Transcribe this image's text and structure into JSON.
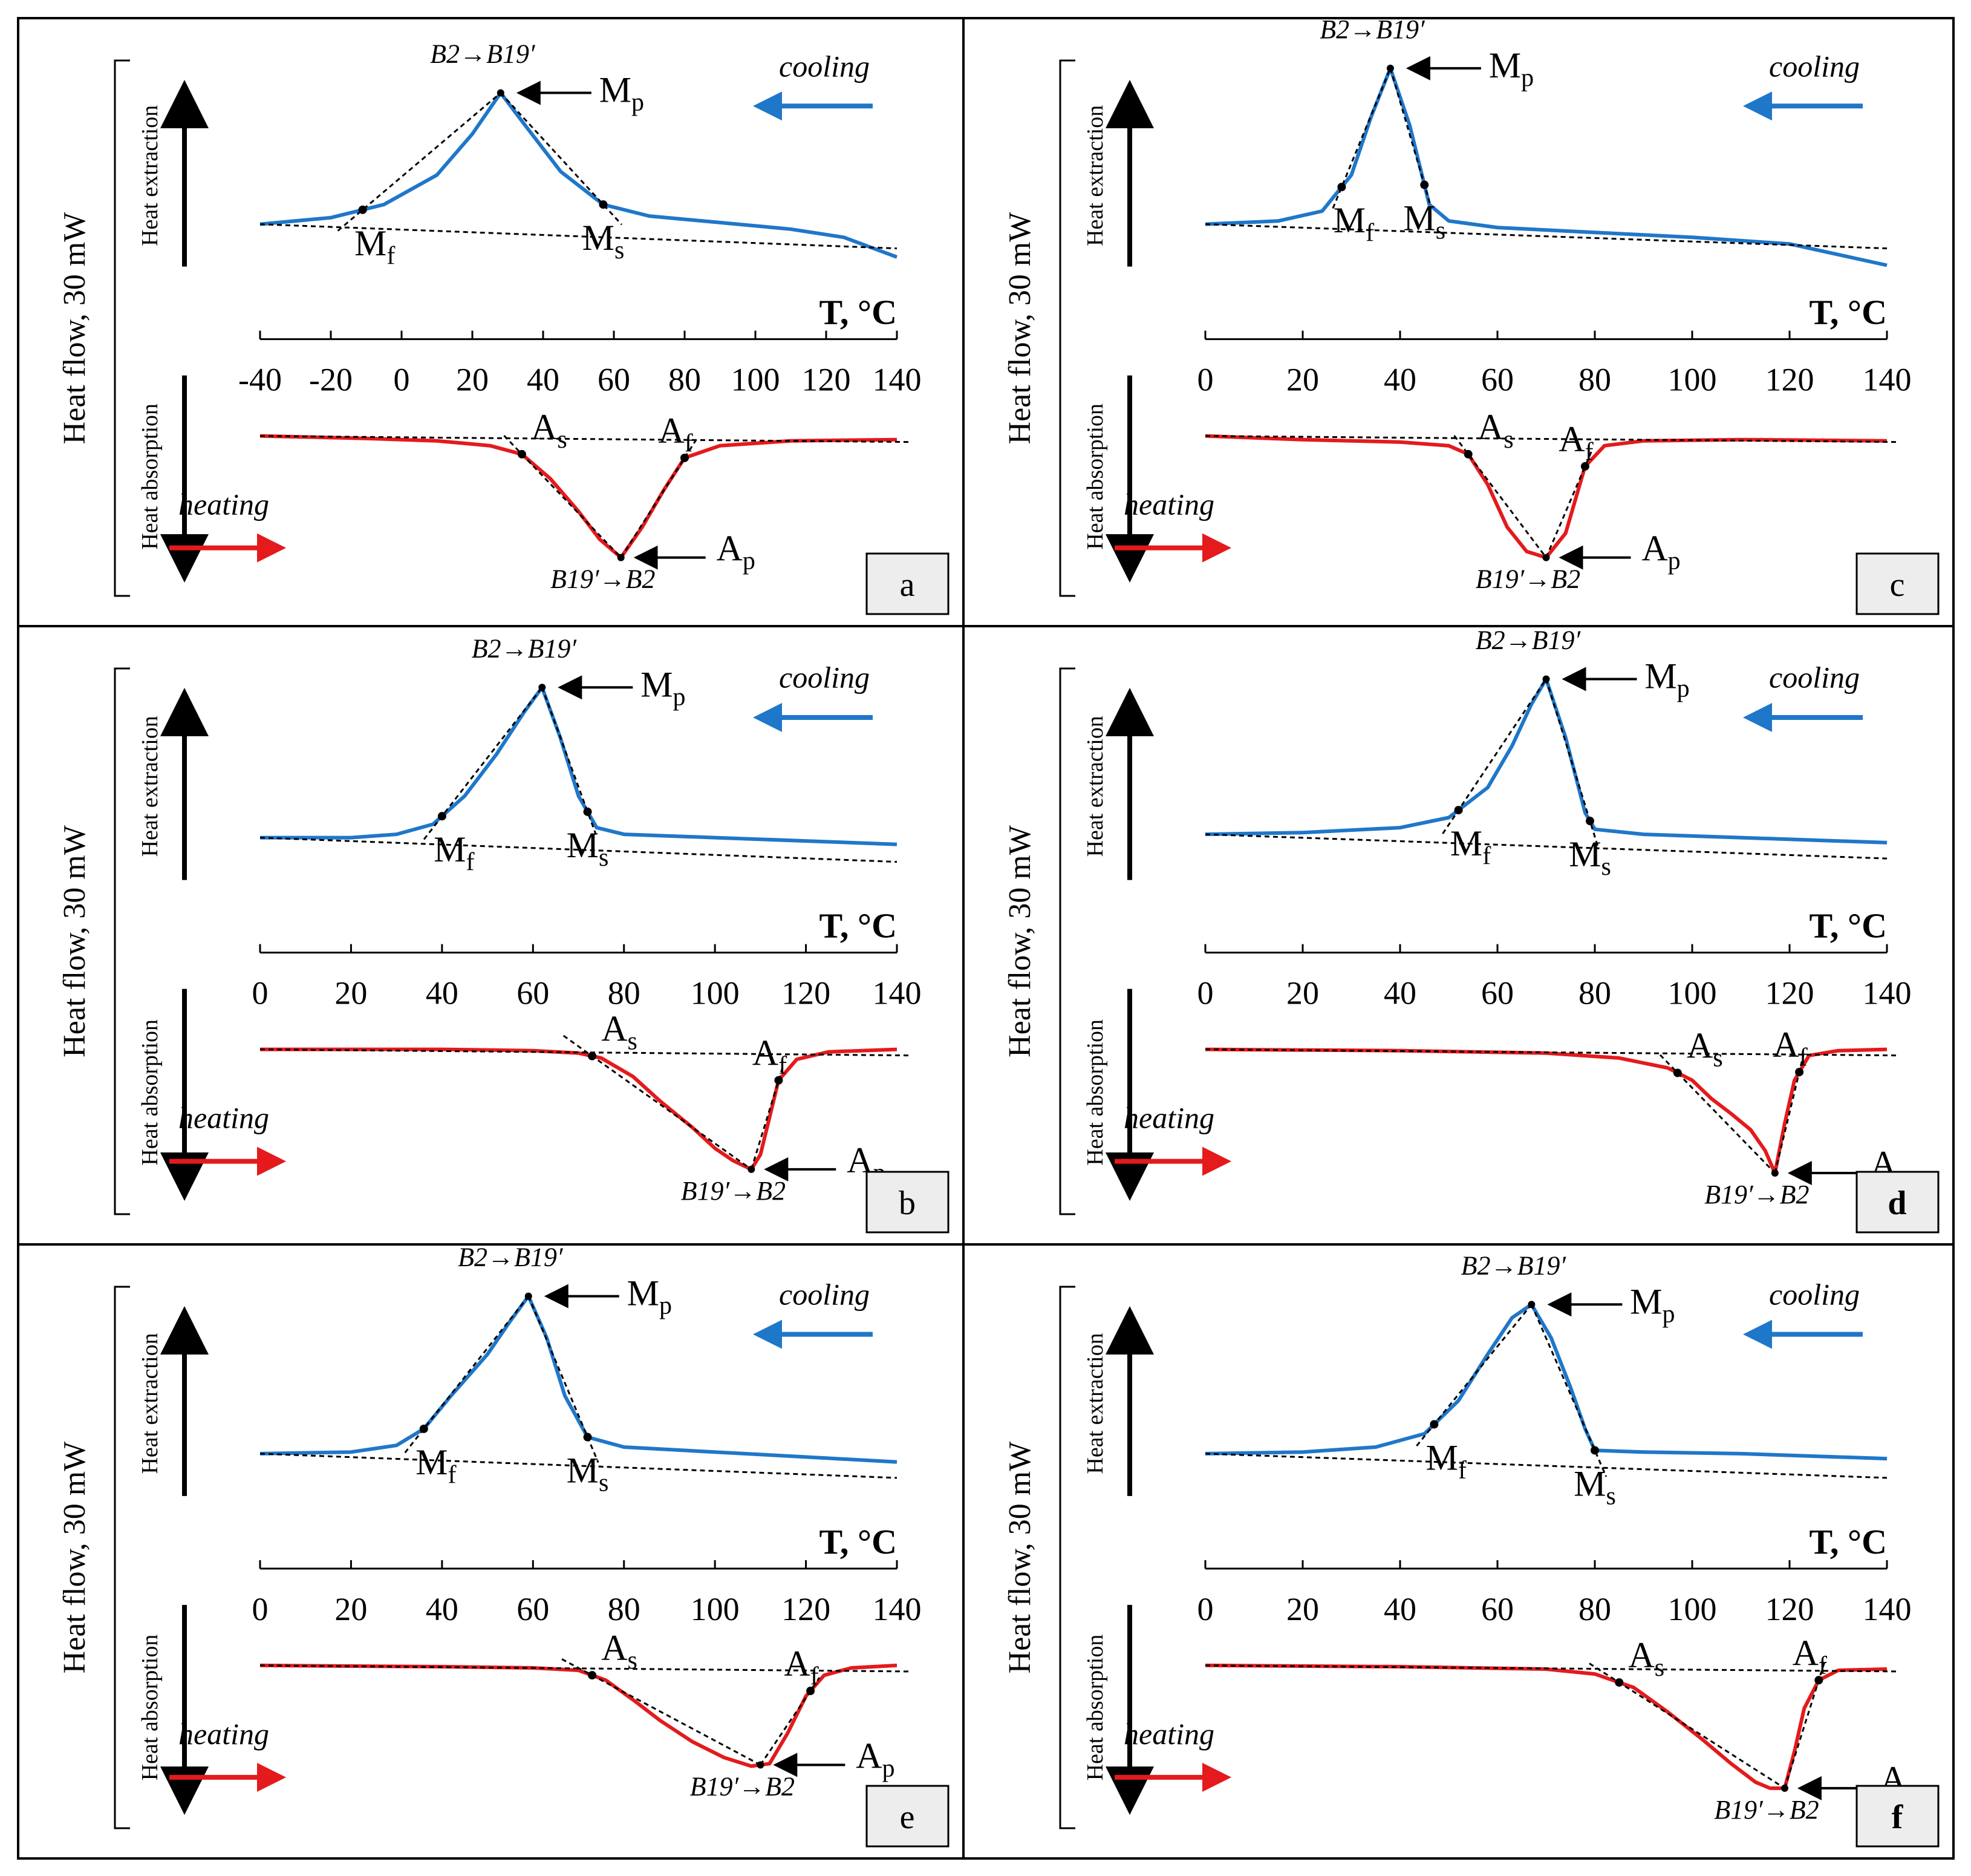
{
  "figure": {
    "y_axis_label": "Heat flow, 30 mW",
    "heat_extraction_label": "Heat extraction",
    "heat_absorption_label": "Heat absorption",
    "x_axis_label": "T, °C",
    "cooling_label": "cooling",
    "heating_label": "heating",
    "forward_transformation": "B2→B19′",
    "reverse_transformation": "B19′→B2",
    "point_labels": {
      "Mp": {
        "main": "M",
        "sub": "p"
      },
      "Mf": {
        "main": "M",
        "sub": "f"
      },
      "Ms": {
        "main": "M",
        "sub": "s"
      },
      "As": {
        "main": "A",
        "sub": "s"
      },
      "Af": {
        "main": "A",
        "sub": "f"
      },
      "Ap": {
        "main": "A",
        "sub": "p"
      }
    },
    "colors": {
      "cooling": "#1f77c9",
      "heating": "#e41a1c",
      "tangent": "#000000",
      "letter_box": "#ededed"
    }
  },
  "chart_data": [
    {
      "panel": "a",
      "type": "line",
      "xlim": [
        -40,
        140
      ],
      "x_ticks": [
        "-40",
        "-20",
        "0",
        "20",
        "40",
        "60",
        "80",
        "100",
        "120",
        "140"
      ],
      "cooling": {
        "Mf": -11,
        "Mp": 28,
        "Ms": 57,
        "x": [
          -40,
          -20,
          -5,
          10,
          20,
          28,
          35,
          45,
          57,
          70,
          90,
          110,
          125,
          140
        ],
        "y": [
          0.0,
          0.04,
          0.12,
          0.3,
          0.55,
          0.8,
          0.6,
          0.32,
          0.12,
          0.05,
          0.01,
          -0.03,
          -0.08,
          -0.2
        ]
      },
      "heating": {
        "As": 34,
        "Ap": 62,
        "Af": 80,
        "x": [
          -40,
          -10,
          10,
          25,
          34,
          42,
          50,
          56,
          62,
          68,
          74,
          80,
          90,
          110,
          140
        ],
        "y": [
          0.0,
          -0.02,
          -0.04,
          -0.08,
          -0.15,
          -0.35,
          -0.62,
          -0.85,
          -1.0,
          -0.75,
          -0.45,
          -0.18,
          -0.08,
          -0.04,
          -0.03
        ]
      }
    },
    {
      "panel": "b",
      "type": "line",
      "xlim": [
        0,
        140
      ],
      "x_ticks": [
        "0",
        "20",
        "40",
        "60",
        "80",
        "100",
        "120",
        "140"
      ],
      "cooling": {
        "Mf": 40,
        "Mp": 62,
        "Ms": 72,
        "x": [
          0,
          20,
          30,
          38,
          45,
          52,
          58,
          62,
          66,
          70,
          74,
          80,
          100,
          120,
          140
        ],
        "y": [
          0.0,
          0.0,
          0.02,
          0.08,
          0.25,
          0.5,
          0.75,
          0.9,
          0.6,
          0.25,
          0.06,
          0.02,
          0.0,
          -0.02,
          -0.04
        ]
      },
      "heating": {
        "As": 73,
        "Ap": 108,
        "Af": 114,
        "x": [
          0,
          40,
          60,
          70,
          75,
          82,
          88,
          95,
          100,
          104,
          108,
          110,
          112,
          114,
          118,
          125,
          140
        ],
        "y": [
          0.0,
          0.0,
          -0.01,
          -0.03,
          -0.07,
          -0.22,
          -0.42,
          -0.63,
          -0.8,
          -0.9,
          -0.97,
          -0.85,
          -0.55,
          -0.25,
          -0.08,
          -0.02,
          0.0
        ]
      }
    },
    {
      "panel": "c",
      "type": "line",
      "xlim": [
        0,
        140
      ],
      "x_ticks": [
        "0",
        "20",
        "40",
        "60",
        "80",
        "100",
        "120",
        "140"
      ],
      "cooling": {
        "Mf": 28,
        "Mp": 38,
        "Ms": 45,
        "x": [
          0,
          15,
          24,
          30,
          34,
          38,
          42,
          46,
          50,
          60,
          80,
          100,
          120,
          140
        ],
        "y": [
          0.0,
          0.02,
          0.08,
          0.3,
          0.65,
          0.95,
          0.6,
          0.12,
          0.02,
          -0.02,
          -0.05,
          -0.08,
          -0.12,
          -0.25
        ]
      },
      "heating": {
        "As": 54,
        "Ap": 70,
        "Af": 78,
        "x": [
          0,
          20,
          40,
          50,
          54,
          58,
          62,
          66,
          70,
          74,
          78,
          82,
          90,
          110,
          140
        ],
        "y": [
          0.0,
          -0.03,
          -0.05,
          -0.08,
          -0.15,
          -0.4,
          -0.75,
          -0.95,
          -1.0,
          -0.8,
          -0.25,
          -0.08,
          -0.04,
          -0.03,
          -0.04
        ]
      }
    },
    {
      "panel": "d",
      "type": "line",
      "xlim": [
        0,
        140
      ],
      "x_ticks": [
        "0",
        "20",
        "40",
        "60",
        "80",
        "100",
        "120",
        "140"
      ],
      "cooling": {
        "Mf": 52,
        "Mp": 70,
        "Ms": 79,
        "x": [
          0,
          20,
          40,
          50,
          58,
          63,
          67,
          70,
          74,
          78,
          80,
          90,
          110,
          140
        ],
        "y": [
          0.02,
          0.03,
          0.06,
          0.12,
          0.3,
          0.55,
          0.8,
          0.95,
          0.6,
          0.15,
          0.05,
          0.02,
          0.0,
          -0.03
        ]
      },
      "heating": {
        "As": 97,
        "Ap": 117,
        "Af": 122,
        "x": [
          0,
          40,
          70,
          85,
          95,
          100,
          104,
          108,
          112,
          115,
          117,
          119,
          121,
          124,
          130,
          140
        ],
        "y": [
          0.0,
          -0.01,
          -0.03,
          -0.07,
          -0.15,
          -0.25,
          -0.4,
          -0.52,
          -0.65,
          -0.82,
          -1.0,
          -0.6,
          -0.25,
          -0.05,
          -0.01,
          0.0
        ]
      }
    },
    {
      "panel": "e",
      "type": "line",
      "xlim": [
        0,
        140
      ],
      "x_ticks": [
        "0",
        "20",
        "40",
        "60",
        "80",
        "100",
        "120",
        "140"
      ],
      "cooling": {
        "Mf": 36,
        "Mp": 59,
        "Ms": 72,
        "x": [
          0,
          20,
          30,
          36,
          42,
          50,
          55,
          59,
          63,
          67,
          72,
          80,
          100,
          120,
          140
        ],
        "y": [
          0.0,
          0.01,
          0.05,
          0.15,
          0.35,
          0.6,
          0.8,
          0.95,
          0.7,
          0.35,
          0.1,
          0.04,
          0.01,
          -0.02,
          -0.05
        ]
      },
      "heating": {
        "As": 73,
        "Ap": 110,
        "Af": 121,
        "x": [
          0,
          40,
          60,
          70,
          76,
          82,
          88,
          95,
          102,
          108,
          112,
          116,
          120,
          124,
          130,
          140
        ],
        "y": [
          0.0,
          -0.01,
          -0.02,
          -0.04,
          -0.12,
          -0.28,
          -0.45,
          -0.62,
          -0.75,
          -0.82,
          -0.8,
          -0.55,
          -0.25,
          -0.08,
          -0.02,
          0.0
        ]
      }
    },
    {
      "panel": "f",
      "type": "line",
      "xlim": [
        0,
        140
      ],
      "x_ticks": [
        "0",
        "20",
        "40",
        "60",
        "80",
        "100",
        "120",
        "140"
      ],
      "cooling": {
        "Mf": 47,
        "Mp": 67,
        "Ms": 80,
        "x": [
          0,
          20,
          35,
          45,
          52,
          58,
          63,
          67,
          71,
          75,
          78,
          80,
          90,
          110,
          140
        ],
        "y": [
          0.0,
          0.01,
          0.04,
          0.12,
          0.32,
          0.6,
          0.82,
          0.9,
          0.7,
          0.4,
          0.15,
          0.02,
          0.01,
          0.0,
          -0.03
        ]
      },
      "heating": {
        "As": 85,
        "Ap": 119,
        "Af": 126,
        "x": [
          0,
          40,
          70,
          80,
          88,
          95,
          102,
          108,
          113,
          116,
          119,
          121,
          123,
          126,
          130,
          140
        ],
        "y": [
          0.0,
          -0.01,
          -0.03,
          -0.07,
          -0.18,
          -0.38,
          -0.6,
          -0.8,
          -0.95,
          -1.0,
          -1.0,
          -0.7,
          -0.35,
          -0.12,
          -0.04,
          -0.03
        ]
      }
    }
  ]
}
